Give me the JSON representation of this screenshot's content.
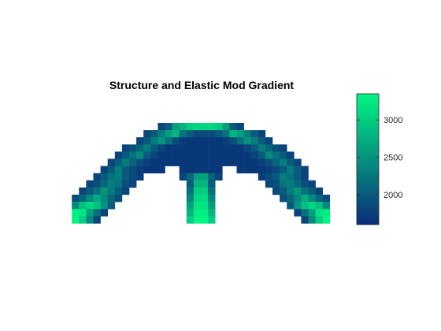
{
  "chart_data": {
    "type": "heatmap",
    "title": "Structure and Elastic Mod Gradient",
    "xlabel": "",
    "ylabel": "",
    "grid": false,
    "axes_visible": false,
    "colormap": {
      "name": "winter-like",
      "low": "#0a2d7a",
      "high": "#00f582"
    },
    "colorbar": {
      "position": "right",
      "range": [
        1600,
        3350
      ],
      "ticks": [
        2000,
        2500,
        3000
      ],
      "tick_labels": [
        "2000",
        "2500",
        "3000"
      ]
    },
    "grid_size": {
      "cols": 38,
      "rows": 14
    },
    "row_order": "top-to-bottom",
    "empty_value": null,
    "rows": [
      [
        null,
        null,
        null,
        null,
        null,
        null,
        null,
        null,
        null,
        null,
        null,
        null,
        null,
        null,
        1800,
        2000,
        2600,
        2800,
        3000,
        3100,
        3100,
        3100,
        3000,
        2600,
        2000,
        1800,
        null,
        null,
        null,
        null,
        null,
        null,
        null,
        null,
        null,
        null,
        null,
        null
      ],
      [
        null,
        null,
        null,
        null,
        null,
        null,
        null,
        null,
        null,
        null,
        null,
        null,
        1800,
        2000,
        2300,
        2600,
        2800,
        2200,
        2000,
        1850,
        1850,
        1850,
        2000,
        2200,
        2800,
        2600,
        2300,
        2000,
        1800,
        null,
        null,
        null,
        null,
        null,
        null,
        null,
        null,
        null
      ],
      [
        null,
        null,
        null,
        null,
        null,
        null,
        null,
        null,
        null,
        null,
        null,
        1800,
        2000,
        2300,
        2500,
        2200,
        1900,
        1750,
        1700,
        1700,
        1700,
        1700,
        1700,
        1750,
        1900,
        2200,
        2500,
        2300,
        2000,
        1800,
        null,
        null,
        null,
        null,
        null,
        null,
        null,
        null
      ],
      [
        null,
        null,
        null,
        null,
        null,
        null,
        null,
        null,
        null,
        1800,
        1900,
        2100,
        2300,
        2000,
        1800,
        1700,
        1700,
        1700,
        1700,
        1700,
        1700,
        1700,
        1700,
        1700,
        1700,
        1700,
        1800,
        2000,
        2300,
        2100,
        1900,
        1800,
        null,
        null,
        null,
        null,
        null,
        null
      ],
      [
        null,
        null,
        null,
        null,
        null,
        null,
        null,
        null,
        1800,
        2000,
        2200,
        2400,
        2000,
        1800,
        1700,
        1700,
        1700,
        1700,
        1700,
        1700,
        1700,
        1700,
        1700,
        1700,
        1700,
        1700,
        1700,
        1800,
        2000,
        2400,
        2200,
        2000,
        1800,
        null,
        null,
        null,
        null,
        null
      ],
      [
        null,
        null,
        null,
        null,
        null,
        null,
        null,
        1800,
        2000,
        2300,
        2100,
        1900,
        1750,
        1700,
        1700,
        1700,
        1700,
        1700,
        1700,
        1700,
        1700,
        1700,
        1700,
        1700,
        1700,
        1700,
        1700,
        1700,
        1750,
        1900,
        2100,
        2300,
        2000,
        1800,
        null,
        null,
        null,
        null
      ],
      [
        null,
        null,
        null,
        null,
        null,
        null,
        1800,
        2000,
        2300,
        2000,
        1850,
        1750,
        1700,
        1700,
        1700,
        null,
        null,
        1700,
        1700,
        1700,
        1700,
        1700,
        1700,
        null,
        null,
        1700,
        1700,
        1700,
        1700,
        1750,
        1850,
        2000,
        2300,
        2000,
        1800,
        null,
        null,
        null
      ],
      [
        null,
        null,
        null,
        null,
        null,
        1800,
        2000,
        2200,
        2300,
        2000,
        1850,
        1750,
        null,
        null,
        null,
        null,
        null,
        1800,
        2100,
        2600,
        2600,
        2100,
        1800,
        null,
        null,
        null,
        null,
        null,
        1750,
        1850,
        2000,
        2300,
        2200,
        2000,
        1800,
        null,
        null,
        null
      ],
      [
        null,
        null,
        null,
        null,
        1800,
        1900,
        2100,
        2300,
        2200,
        1900,
        1800,
        null,
        null,
        null,
        null,
        null,
        null,
        null,
        2000,
        2800,
        2800,
        2000,
        null,
        null,
        null,
        null,
        null,
        null,
        null,
        1800,
        1900,
        2200,
        2300,
        2100,
        1900,
        1800,
        null,
        null
      ],
      [
        null,
        null,
        null,
        1800,
        2000,
        2200,
        2500,
        2300,
        2000,
        1800,
        null,
        null,
        null,
        null,
        null,
        null,
        null,
        null,
        2200,
        3000,
        3000,
        2200,
        null,
        null,
        null,
        null,
        null,
        null,
        null,
        null,
        1800,
        2000,
        2300,
        2500,
        2200,
        2000,
        1800,
        null
      ],
      [
        null,
        null,
        1900,
        2100,
        2400,
        2700,
        2400,
        2100,
        1900,
        null,
        null,
        null,
        null,
        null,
        null,
        null,
        null,
        null,
        2400,
        3100,
        3100,
        2400,
        null,
        null,
        null,
        null,
        null,
        null,
        null,
        null,
        null,
        1900,
        2100,
        2400,
        2700,
        2400,
        2100,
        1900
      ],
      [
        null,
        null,
        2400,
        2900,
        3100,
        2900,
        2500,
        2000,
        null,
        null,
        null,
        null,
        null,
        null,
        null,
        null,
        null,
        null,
        2600,
        3200,
        3200,
        2600,
        null,
        null,
        null,
        null,
        null,
        null,
        null,
        null,
        null,
        null,
        2000,
        2500,
        2900,
        3100,
        2900,
        2400
      ],
      [
        null,
        null,
        3300,
        3200,
        2600,
        2200,
        1800,
        null,
        null,
        null,
        null,
        null,
        null,
        null,
        null,
        null,
        null,
        null,
        2800,
        3300,
        3300,
        2800,
        null,
        null,
        null,
        null,
        null,
        null,
        null,
        null,
        null,
        null,
        null,
        1800,
        2200,
        2600,
        3200,
        3300
      ],
      [
        null,
        null,
        3350,
        3000,
        2400,
        1800,
        null,
        null,
        null,
        null,
        null,
        null,
        null,
        null,
        null,
        null,
        null,
        null,
        3000,
        3350,
        3350,
        3000,
        null,
        null,
        null,
        null,
        null,
        null,
        null,
        null,
        null,
        null,
        null,
        null,
        1800,
        2400,
        3000,
        3350
      ]
    ]
  }
}
